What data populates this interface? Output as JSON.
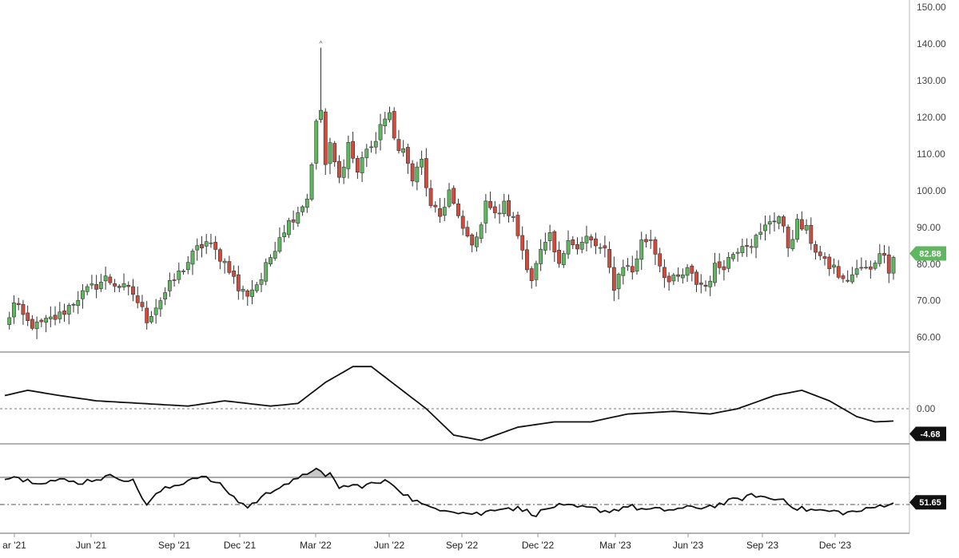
{
  "colors": {
    "up": "#5fb760",
    "down": "#cf4b3c",
    "wick": "#333333",
    "line": "#111111",
    "last_price_tag": "#5fb760",
    "indicator_tag": "#111111",
    "rsi_fill": "#c8c8c8",
    "grid_dashed": "#777777",
    "panel_border": "#999999"
  },
  "x_labels": [
    "ar '21",
    "Jun '21",
    "Sep '21",
    "Dec '21",
    "Mar '22",
    "Jun '22",
    "Sep '22",
    "Dec '22",
    "Mar '23",
    "Jun '23",
    "Sep '23",
    "Dec '23"
  ],
  "price_panel": {
    "y_ticks": [
      "150.00",
      "140.00",
      "130.00",
      "120.00",
      "110.00",
      "100.00",
      "90.00",
      "80.00",
      "70.00",
      "60.00"
    ],
    "y_range": [
      56,
      152
    ],
    "last_price_label": "82.88",
    "peak_marker": "^"
  },
  "momentum_panel": {
    "zero_label": "0.00",
    "current_label": "-4.68"
  },
  "rsi_panel": {
    "current_label": "51.65",
    "upper_level": 70,
    "mid_level": 50
  },
  "chart_data": {
    "type": "candlestick",
    "interval": "weekly",
    "date_range": [
      "Mar '21",
      "Feb '24"
    ],
    "ohlc_anchors": [
      {
        "i": 0,
        "close": 63
      },
      {
        "i": 2,
        "close": 69
      },
      {
        "i": 5,
        "close": 64
      },
      {
        "i": 7,
        "close": 63
      },
      {
        "i": 12,
        "close": 66
      },
      {
        "i": 16,
        "close": 71
      },
      {
        "i": 22,
        "close": 76
      },
      {
        "i": 28,
        "close": 72
      },
      {
        "i": 31,
        "close": 65
      },
      {
        "i": 36,
        "close": 74
      },
      {
        "i": 42,
        "close": 84
      },
      {
        "i": 44,
        "close": 86
      },
      {
        "i": 47,
        "close": 82
      },
      {
        "i": 49,
        "close": 79
      },
      {
        "i": 51,
        "close": 73
      },
      {
        "i": 53,
        "close": 72
      },
      {
        "i": 56,
        "close": 76
      },
      {
        "i": 60,
        "close": 88
      },
      {
        "i": 63,
        "close": 93
      },
      {
        "i": 66,
        "close": 98
      },
      {
        "i": 68,
        "close": 118
      },
      {
        "i": 69,
        "close": 122
      },
      {
        "i": 70,
        "close": 107
      },
      {
        "i": 71,
        "close": 112
      },
      {
        "i": 73,
        "close": 103
      },
      {
        "i": 75,
        "close": 113
      },
      {
        "i": 77,
        "close": 105
      },
      {
        "i": 79,
        "close": 112
      },
      {
        "i": 81,
        "close": 112
      },
      {
        "i": 82,
        "close": 119
      },
      {
        "i": 84,
        "close": 120
      },
      {
        "i": 85,
        "close": 114
      },
      {
        "i": 87,
        "close": 111
      },
      {
        "i": 89,
        "close": 103
      },
      {
        "i": 91,
        "close": 108
      },
      {
        "i": 93,
        "close": 95
      },
      {
        "i": 95,
        "close": 93
      },
      {
        "i": 97,
        "close": 100
      },
      {
        "i": 99,
        "close": 92
      },
      {
        "i": 101,
        "close": 87
      },
      {
        "i": 103,
        "close": 86
      },
      {
        "i": 105,
        "close": 98
      },
      {
        "i": 107,
        "close": 93
      },
      {
        "i": 109,
        "close": 96
      },
      {
        "i": 111,
        "close": 92
      },
      {
        "i": 113,
        "close": 84
      },
      {
        "i": 115,
        "close": 76
      },
      {
        "i": 117,
        "close": 83
      },
      {
        "i": 119,
        "close": 87
      },
      {
        "i": 121,
        "close": 79
      },
      {
        "i": 123,
        "close": 88
      },
      {
        "i": 125,
        "close": 84
      },
      {
        "i": 127,
        "close": 87
      },
      {
        "i": 129,
        "close": 85
      },
      {
        "i": 131,
        "close": 83
      },
      {
        "i": 133,
        "close": 74
      },
      {
        "i": 135,
        "close": 80
      },
      {
        "i": 137,
        "close": 78
      },
      {
        "i": 139,
        "close": 86
      },
      {
        "i": 141,
        "close": 87
      },
      {
        "i": 143,
        "close": 80
      },
      {
        "i": 145,
        "close": 75
      },
      {
        "i": 147,
        "close": 76
      },
      {
        "i": 149,
        "close": 78
      },
      {
        "i": 151,
        "close": 75
      },
      {
        "i": 153,
        "close": 74
      },
      {
        "i": 155,
        "close": 79
      },
      {
        "i": 157,
        "close": 80
      },
      {
        "i": 159,
        "close": 83
      },
      {
        "i": 161,
        "close": 86
      },
      {
        "i": 163,
        "close": 86
      },
      {
        "i": 165,
        "close": 88
      },
      {
        "i": 167,
        "close": 92
      },
      {
        "i": 169,
        "close": 93
      },
      {
        "i": 171,
        "close": 85
      },
      {
        "i": 173,
        "close": 91
      },
      {
        "i": 175,
        "close": 89
      },
      {
        "i": 177,
        "close": 84
      },
      {
        "i": 179,
        "close": 80
      },
      {
        "i": 181,
        "close": 79
      },
      {
        "i": 183,
        "close": 75
      },
      {
        "i": 185,
        "close": 77
      },
      {
        "i": 187,
        "close": 79
      },
      {
        "i": 189,
        "close": 78
      },
      {
        "i": 191,
        "close": 84
      },
      {
        "i": 193,
        "close": 79
      },
      {
        "i": 194,
        "close": 83
      }
    ],
    "peak": {
      "i": 69,
      "high": 139
    },
    "momentum": {
      "zero": 0,
      "anchors": [
        {
          "i": 0,
          "v": 5
        },
        {
          "i": 5,
          "v": 7
        },
        {
          "i": 12,
          "v": 5
        },
        {
          "i": 20,
          "v": 3
        },
        {
          "i": 30,
          "v": 2
        },
        {
          "i": 40,
          "v": 1
        },
        {
          "i": 48,
          "v": 3
        },
        {
          "i": 58,
          "v": 1
        },
        {
          "i": 64,
          "v": 2
        },
        {
          "i": 70,
          "v": 10
        },
        {
          "i": 76,
          "v": 16
        },
        {
          "i": 80,
          "v": 16
        },
        {
          "i": 86,
          "v": 8
        },
        {
          "i": 92,
          "v": 0
        },
        {
          "i": 98,
          "v": -10
        },
        {
          "i": 104,
          "v": -12
        },
        {
          "i": 112,
          "v": -7
        },
        {
          "i": 120,
          "v": -5
        },
        {
          "i": 128,
          "v": -5
        },
        {
          "i": 136,
          "v": -2
        },
        {
          "i": 146,
          "v": -1
        },
        {
          "i": 154,
          "v": -2
        },
        {
          "i": 160,
          "v": 0
        },
        {
          "i": 168,
          "v": 5
        },
        {
          "i": 174,
          "v": 7
        },
        {
          "i": 180,
          "v": 3
        },
        {
          "i": 186,
          "v": -3
        },
        {
          "i": 190,
          "v": -5
        },
        {
          "i": 194,
          "v": -4.68
        }
      ]
    },
    "rsi": {
      "anchors": [
        {
          "i": 0,
          "v": 70
        },
        {
          "i": 2,
          "v": 72
        },
        {
          "i": 4,
          "v": 68
        },
        {
          "i": 8,
          "v": 67
        },
        {
          "i": 12,
          "v": 68
        },
        {
          "i": 16,
          "v": 66
        },
        {
          "i": 20,
          "v": 69
        },
        {
          "i": 24,
          "v": 71
        },
        {
          "i": 28,
          "v": 67
        },
        {
          "i": 31,
          "v": 50
        },
        {
          "i": 34,
          "v": 60
        },
        {
          "i": 38,
          "v": 65
        },
        {
          "i": 42,
          "v": 71
        },
        {
          "i": 45,
          "v": 68
        },
        {
          "i": 48,
          "v": 62
        },
        {
          "i": 50,
          "v": 55
        },
        {
          "i": 53,
          "v": 48
        },
        {
          "i": 56,
          "v": 55
        },
        {
          "i": 60,
          "v": 64
        },
        {
          "i": 64,
          "v": 68
        },
        {
          "i": 68,
          "v": 78
        },
        {
          "i": 70,
          "v": 69
        },
        {
          "i": 71,
          "v": 72
        },
        {
          "i": 73,
          "v": 63
        },
        {
          "i": 78,
          "v": 64
        },
        {
          "i": 84,
          "v": 67
        },
        {
          "i": 88,
          "v": 56
        },
        {
          "i": 92,
          "v": 48
        },
        {
          "i": 96,
          "v": 47
        },
        {
          "i": 100,
          "v": 44
        },
        {
          "i": 104,
          "v": 43
        },
        {
          "i": 108,
          "v": 48
        },
        {
          "i": 112,
          "v": 47
        },
        {
          "i": 116,
          "v": 43
        },
        {
          "i": 120,
          "v": 49
        },
        {
          "i": 124,
          "v": 48
        },
        {
          "i": 128,
          "v": 47
        },
        {
          "i": 132,
          "v": 45
        },
        {
          "i": 136,
          "v": 49
        },
        {
          "i": 140,
          "v": 46
        },
        {
          "i": 144,
          "v": 46
        },
        {
          "i": 148,
          "v": 47
        },
        {
          "i": 152,
          "v": 48
        },
        {
          "i": 156,
          "v": 50
        },
        {
          "i": 160,
          "v": 54
        },
        {
          "i": 164,
          "v": 57
        },
        {
          "i": 167,
          "v": 54
        },
        {
          "i": 170,
          "v": 54
        },
        {
          "i": 173,
          "v": 47
        },
        {
          "i": 176,
          "v": 46
        },
        {
          "i": 180,
          "v": 45
        },
        {
          "i": 184,
          "v": 44
        },
        {
          "i": 188,
          "v": 46
        },
        {
          "i": 192,
          "v": 50
        },
        {
          "i": 194,
          "v": 51.65
        }
      ]
    },
    "n_bars": 195
  }
}
